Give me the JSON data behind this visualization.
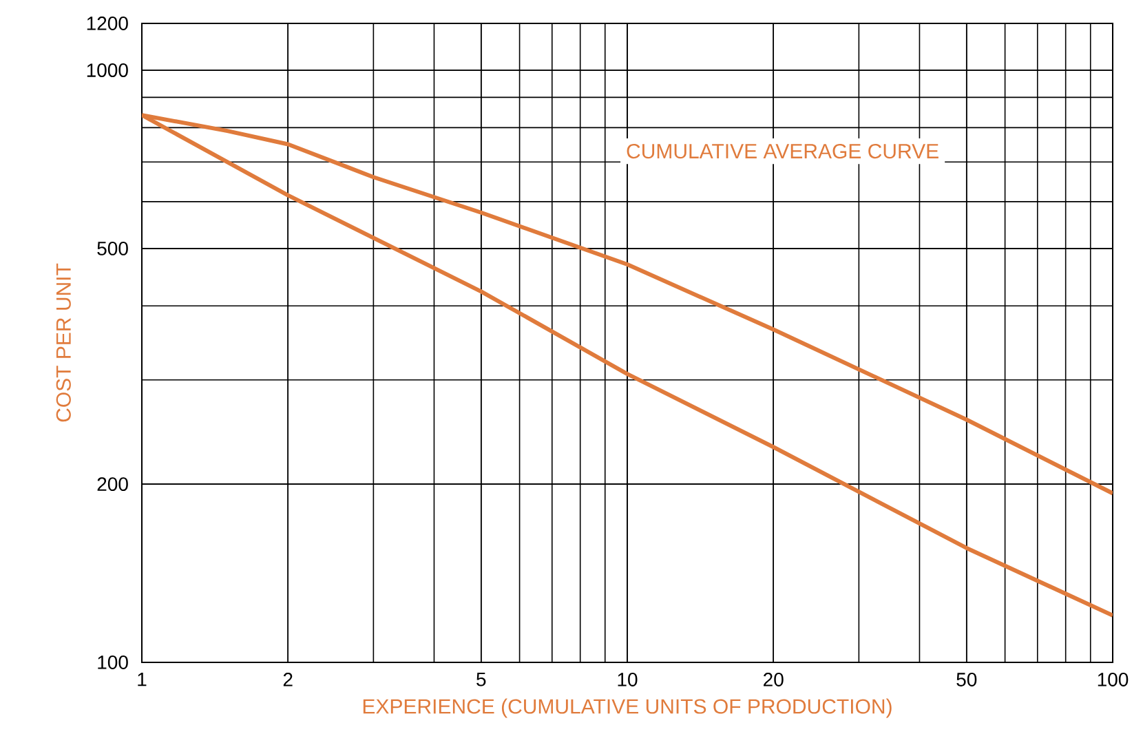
{
  "chart_data": {
    "type": "line",
    "xlabel": "EXPERIENCE (CUMULATIVE UNITS OF PRODUCTION)",
    "ylabel": "COST PER UNIT",
    "log": "xy",
    "grid": true,
    "xlim": [
      1,
      100
    ],
    "ylim": [
      100,
      1200
    ],
    "xticks": [
      1,
      2,
      5,
      10,
      20,
      50,
      100
    ],
    "yticks": [
      100,
      200,
      500,
      1000,
      1200
    ],
    "series": [
      {
        "color": "#e07b3c",
        "x": [
          1,
          2,
          5,
          10,
          20,
          50,
          100
        ],
        "values": [
          840,
          615,
          423,
          307,
          231,
          156,
          120
        ]
      },
      {
        "color": "#e07b3c",
        "x": [
          1,
          1.5,
          2,
          3,
          5,
          10,
          20,
          50,
          100
        ],
        "values": [
          840,
          790,
          750,
          660,
          575,
          470,
          365,
          257,
          193
        ]
      }
    ],
    "annotations": [
      "CUMULATIVE AVERAGE CURVE"
    ]
  }
}
